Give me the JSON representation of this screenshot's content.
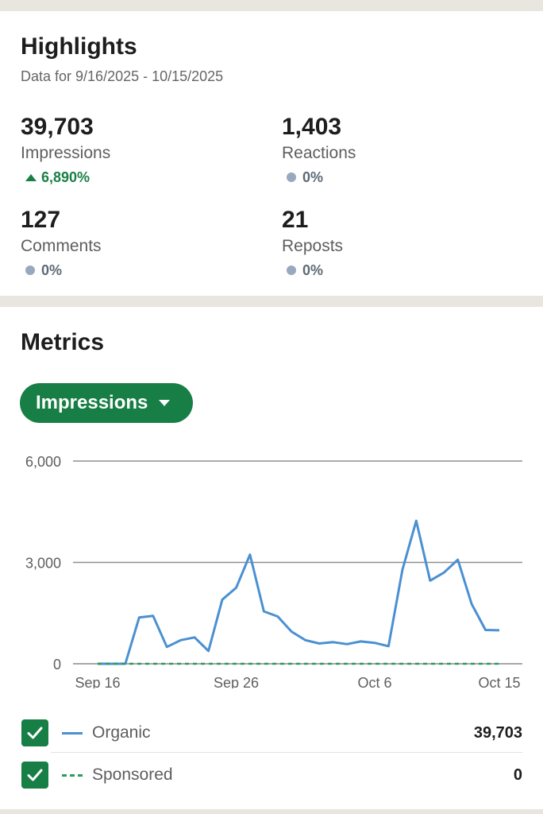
{
  "highlights": {
    "title": "Highlights",
    "date_range": "Data for 9/16/2025 - 10/15/2025",
    "stats": [
      {
        "value": "39,703",
        "label": "Impressions",
        "change": "6,890%",
        "trend": "up"
      },
      {
        "value": "1,403",
        "label": "Reactions",
        "change": "0%",
        "trend": "flat"
      },
      {
        "value": "127",
        "label": "Comments",
        "change": "0%",
        "trend": "flat"
      },
      {
        "value": "21",
        "label": "Reposts",
        "change": "0%",
        "trend": "flat"
      }
    ]
  },
  "metrics": {
    "title": "Metrics",
    "selector_label": "Impressions"
  },
  "colors": {
    "brand_green": "#177e45",
    "positive_green": "#1a7f46",
    "organic_line": "#4a90d2",
    "sponsored_line": "#2e9a5e",
    "neutral_dot": "#98a8bf"
  },
  "chart_data": {
    "type": "line",
    "y_ticks": [
      "6,000",
      "3,000",
      "0"
    ],
    "ylim": [
      0,
      6000
    ],
    "x_tick_labels": [
      "Sep 16",
      "Sep 26",
      "Oct 6",
      "Oct 15"
    ],
    "x": [
      "Sep 16",
      "Sep 17",
      "Sep 18",
      "Sep 19",
      "Sep 20",
      "Sep 21",
      "Sep 22",
      "Sep 23",
      "Sep 24",
      "Sep 25",
      "Sep 26",
      "Sep 27",
      "Sep 28",
      "Sep 29",
      "Sep 30",
      "Oct 1",
      "Oct 2",
      "Oct 3",
      "Oct 4",
      "Oct 5",
      "Oct 6",
      "Oct 7",
      "Oct 8",
      "Oct 9",
      "Oct 10",
      "Oct 11",
      "Oct 12",
      "Oct 13",
      "Oct 14",
      "Oct 15"
    ],
    "series": [
      {
        "name": "Organic",
        "total": "39,703",
        "style": "solid",
        "values": [
          0,
          0,
          0,
          1370,
          1420,
          500,
          700,
          780,
          380,
          1900,
          2250,
          3230,
          1550,
          1400,
          950,
          700,
          600,
          640,
          580,
          660,
          620,
          520,
          2780,
          4230,
          2460,
          2700,
          3080,
          1770,
          1000,
          990
        ]
      },
      {
        "name": "Sponsored",
        "total": "0",
        "style": "dashed",
        "values": [
          0,
          0,
          0,
          0,
          0,
          0,
          0,
          0,
          0,
          0,
          0,
          0,
          0,
          0,
          0,
          0,
          0,
          0,
          0,
          0,
          0,
          0,
          0,
          0,
          0,
          0,
          0,
          0,
          0,
          0
        ]
      }
    ],
    "grid": true,
    "legend_position": "bottom"
  }
}
